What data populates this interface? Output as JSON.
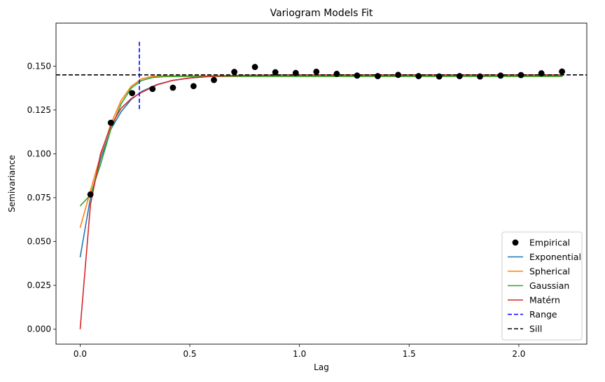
{
  "chart_data": {
    "type": "scatter",
    "title": "Variogram Models Fit",
    "xlabel": "Lag",
    "ylabel": "Semivariance",
    "xlim": [
      -0.11,
      2.31
    ],
    "ylim": [
      -0.0085,
      0.1745
    ],
    "xticks": [
      0.0,
      0.5,
      1.0,
      1.5,
      2.0
    ],
    "xtick_labels": [
      "0.0",
      "0.5",
      "1.0",
      "1.5",
      "2.0"
    ],
    "yticks": [
      0.0,
      0.025,
      0.05,
      0.075,
      0.1,
      0.125,
      0.15
    ],
    "ytick_labels": [
      "0.000",
      "0.025",
      "0.050",
      "0.075",
      "0.100",
      "0.125",
      "0.150"
    ],
    "grid": false,
    "legend_position": "bottom-right",
    "empirical": {
      "name": "Empirical",
      "color": "#000000",
      "x": [
        0.047,
        0.14,
        0.237,
        0.33,
        0.423,
        0.517,
        0.61,
        0.703,
        0.797,
        0.89,
        0.983,
        1.077,
        1.17,
        1.263,
        1.357,
        1.45,
        1.543,
        1.637,
        1.73,
        1.823,
        1.917,
        2.01,
        2.103,
        2.197
      ],
      "y": [
        0.0768,
        0.1177,
        0.1346,
        0.137,
        0.1377,
        0.1386,
        0.1421,
        0.1467,
        0.1495,
        0.1465,
        0.1461,
        0.1468,
        0.1456,
        0.1446,
        0.1443,
        0.145,
        0.1443,
        0.1441,
        0.1443,
        0.1441,
        0.1446,
        0.1449,
        0.1459,
        0.1469
      ]
    },
    "series": [
      {
        "name": "Exponential",
        "color": "#1f77b4",
        "x": [
          0.0,
          0.047,
          0.093,
          0.14,
          0.187,
          0.233,
          0.28,
          0.35,
          0.42,
          0.5,
          0.6,
          0.7,
          0.8,
          1.0,
          1.5,
          2.0,
          2.2
        ],
        "y": [
          0.041,
          0.075,
          0.097,
          0.114,
          0.124,
          0.131,
          0.1355,
          0.1395,
          0.1418,
          0.1432,
          0.1442,
          0.1446,
          0.1448,
          0.145,
          0.145,
          0.145,
          0.145
        ]
      },
      {
        "name": "Spherical",
        "color": "#ff7f0e",
        "x": [
          0.0,
          0.047,
          0.093,
          0.14,
          0.187,
          0.233,
          0.28,
          0.33,
          0.38,
          0.45,
          0.6,
          1.0,
          1.5,
          2.0,
          2.2
        ],
        "y": [
          0.0578,
          0.079,
          0.099,
          0.117,
          0.1305,
          0.1385,
          0.1428,
          0.1442,
          0.1445,
          0.1445,
          0.1445,
          0.1445,
          0.1445,
          0.1445,
          0.1445
        ]
      },
      {
        "name": "Gaussian",
        "color": "#2ca02c",
        "x": [
          0.0,
          0.047,
          0.093,
          0.14,
          0.187,
          0.233,
          0.28,
          0.33,
          0.38,
          0.45,
          0.6,
          1.0,
          1.5,
          2.0,
          2.2
        ],
        "y": [
          0.0703,
          0.0765,
          0.094,
          0.114,
          0.1285,
          0.1375,
          0.1418,
          0.1435,
          0.144,
          0.1441,
          0.1441,
          0.1441,
          0.1441,
          0.1441,
          0.1441
        ]
      },
      {
        "name": "Matérn",
        "color": "#d62728",
        "x": [
          0.0,
          0.047,
          0.093,
          0.14,
          0.187,
          0.233,
          0.28,
          0.35,
          0.42,
          0.5,
          0.6,
          0.7,
          0.8,
          1.0,
          1.5,
          2.0,
          2.2
        ],
        "y": [
          0.0,
          0.071,
          0.1,
          0.116,
          0.126,
          0.1315,
          0.135,
          0.1393,
          0.1418,
          0.1432,
          0.1442,
          0.1446,
          0.1448,
          0.145,
          0.145,
          0.145,
          0.145
        ]
      }
    ],
    "range_line": {
      "name": "Range",
      "color": "#0000ff",
      "x": 0.27,
      "y_from": 0.1255,
      "y_to": 0.1645
    },
    "sill_line": {
      "name": "Sill",
      "color": "#000000",
      "y": 0.145
    }
  }
}
